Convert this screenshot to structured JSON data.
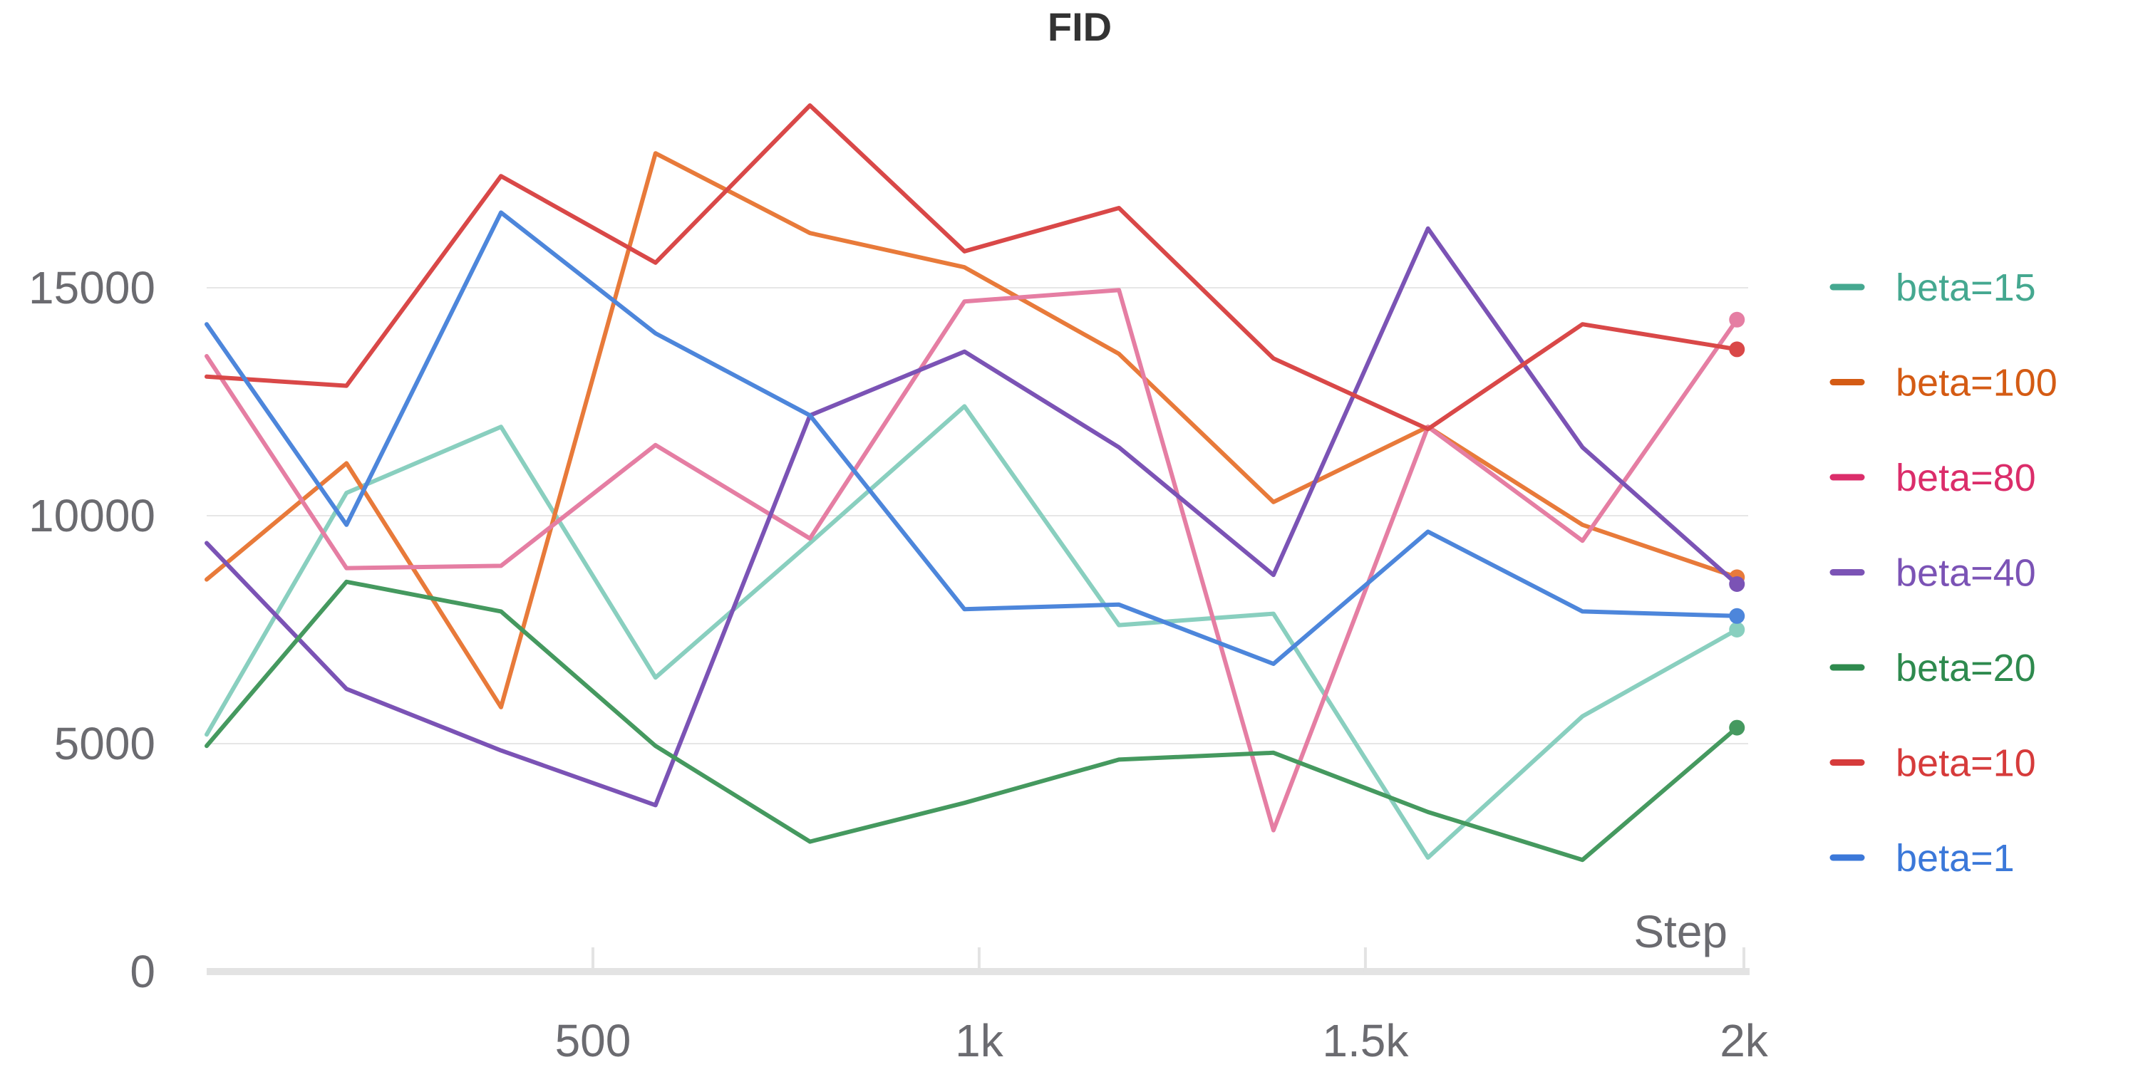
{
  "chart_data": {
    "type": "line",
    "title": "FID",
    "xlabel": "Step",
    "ylabel": "",
    "xlim": [
      0,
      2000
    ],
    "ylim": [
      0,
      20000
    ],
    "yticks": [
      {
        "value": 0,
        "label": "0"
      },
      {
        "value": 5000,
        "label": "5000"
      },
      {
        "value": 10000,
        "label": "10000"
      },
      {
        "value": 15000,
        "label": "15000"
      }
    ],
    "xticks": [
      {
        "value": 500,
        "label": "500"
      },
      {
        "value": 1000,
        "label": "1k"
      },
      {
        "value": 1500,
        "label": "1.5k"
      },
      {
        "value": 1990,
        "label": "2k"
      }
    ],
    "grid": true,
    "legend_position": "right",
    "x": [
      0,
      181,
      381,
      581,
      781,
      981,
      1181,
      1381,
      1581,
      1781,
      1981
    ],
    "series": [
      {
        "name": "beta=15",
        "color": "#89cfbf",
        "legend_color": "#45a890",
        "values": [
          5200,
          10500,
          11950,
          6450,
          9400,
          12400,
          7600,
          7850,
          2500,
          5600,
          7500
        ]
      },
      {
        "name": "beta=100",
        "color": "#e87a3a",
        "legend_color": "#d45b14",
        "values": [
          8600,
          11150,
          5800,
          17950,
          16200,
          15450,
          13550,
          10300,
          11950,
          9800,
          8650
        ]
      },
      {
        "name": "beta=80",
        "color": "#e57ea3",
        "legend_color": "#db2d6a",
        "values": [
          13500,
          8850,
          8900,
          11550,
          9500,
          14700,
          14950,
          3100,
          11950,
          9450,
          14300
        ]
      },
      {
        "name": "beta=40",
        "color": "#7b53b5",
        "legend_color": "#7b53b5",
        "values": [
          9400,
          6200,
          4850,
          3650,
          12200,
          13600,
          11500,
          8700,
          16300,
          11500,
          8500
        ]
      },
      {
        "name": "beta=20",
        "color": "#45995f",
        "legend_color": "#2e8a4e",
        "values": [
          4950,
          8550,
          7900,
          4950,
          2850,
          3700,
          4650,
          4800,
          3500,
          2450,
          5350
        ]
      },
      {
        "name": "beta=10",
        "color": "#d94848",
        "legend_color": "#d63b3b",
        "values": [
          13050,
          12850,
          17450,
          15550,
          19000,
          15800,
          16750,
          13450,
          11900,
          14200,
          13650
        ]
      },
      {
        "name": "beta=1",
        "color": "#4d86db",
        "legend_color": "#3b78d9",
        "values": [
          14200,
          9800,
          16650,
          14000,
          12200,
          7950,
          8050,
          6750,
          9650,
          7900,
          7800
        ]
      }
    ]
  }
}
